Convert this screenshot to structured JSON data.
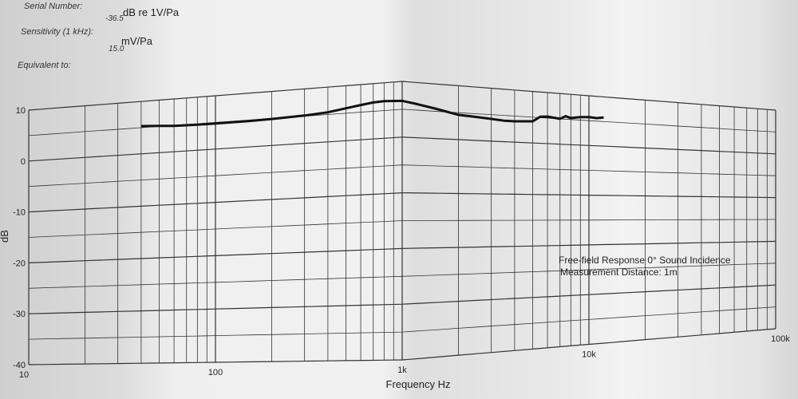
{
  "header": {
    "serial_label": "Serial Number:",
    "sensitivity_label": "Sensitivity (1 kHz):",
    "sensitivity_value": "-36.5",
    "sensitivity_unit": "dB re 1V/Pa",
    "equivalent_label": "Equivalent to:",
    "equivalent_value": "15.0",
    "equivalent_unit": "mV/Pa"
  },
  "annotation": {
    "line1": "Free-field Response   0° Sound Incidence",
    "line2": "Measurement Distance:  1m"
  },
  "chart_data": {
    "type": "line",
    "xlabel": "Frequency Hz",
    "ylabel": "dB",
    "xscale": "log",
    "xlim": [
      10,
      100000
    ],
    "ylim": [
      -40,
      10
    ],
    "grid": true,
    "x_tick_labels": [
      "10",
      "100",
      "1k",
      "10k",
      "100k"
    ],
    "y_tick_labels": [
      "10",
      "0",
      "-10",
      "-20",
      "-30",
      "-40"
    ],
    "series": [
      {
        "x": [
          40,
          50,
          60,
          80,
          100,
          150,
          200,
          300,
          400,
          500,
          600,
          700,
          800,
          900,
          1000,
          1200,
          1500,
          2000,
          2500,
          3000,
          3500,
          4000,
          4500,
          5000,
          5500,
          6000,
          7000,
          7500,
          8000,
          9000,
          10000,
          11000,
          12000
        ],
        "y": [
          5.3,
          5.1,
          4.9,
          4.8,
          4.8,
          4.8,
          4.9,
          5.1,
          5.4,
          5.9,
          6.3,
          6.6,
          6.7,
          6.6,
          6.5,
          6.1,
          5.5,
          4.6,
          4.4,
          4.2,
          4.0,
          4.0,
          4.1,
          4.2,
          5.2,
          5.3,
          5.0,
          5.6,
          5.3,
          5.6,
          5.7,
          5.6,
          5.8
        ]
      }
    ]
  }
}
